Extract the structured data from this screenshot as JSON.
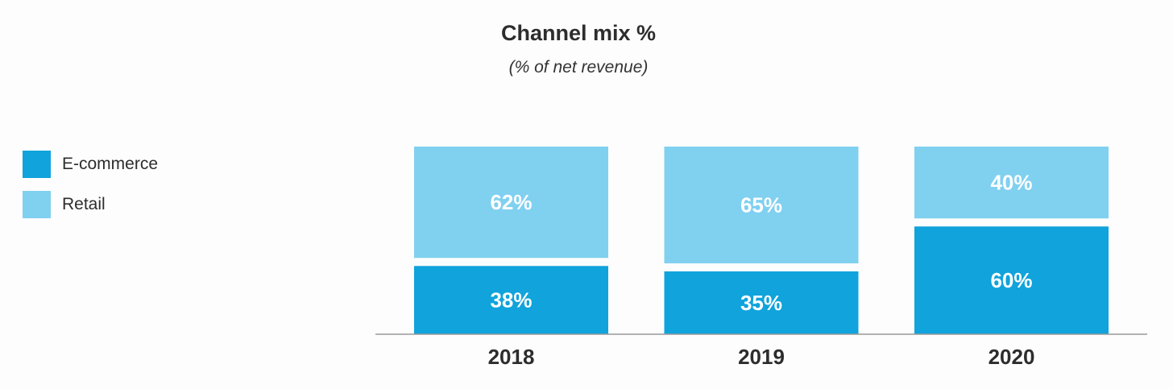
{
  "chart_data": {
    "type": "bar",
    "stacked": true,
    "title": "Channel mix %",
    "subtitle": "(% of net revenue)",
    "categories": [
      "2018",
      "2019",
      "2020"
    ],
    "series": [
      {
        "name": "E-commerce",
        "color": "#10a3dc",
        "values": [
          38,
          35,
          60
        ],
        "labels": [
          "38%",
          "35%",
          "60%"
        ]
      },
      {
        "name": "Retail",
        "color": "#80d0f0",
        "values": [
          62,
          65,
          40
        ],
        "labels": [
          "62%",
          "65%",
          "40%"
        ]
      }
    ],
    "xlabel": "",
    "ylabel": "",
    "ylim": [
      0,
      100
    ],
    "legend_position": "left"
  }
}
